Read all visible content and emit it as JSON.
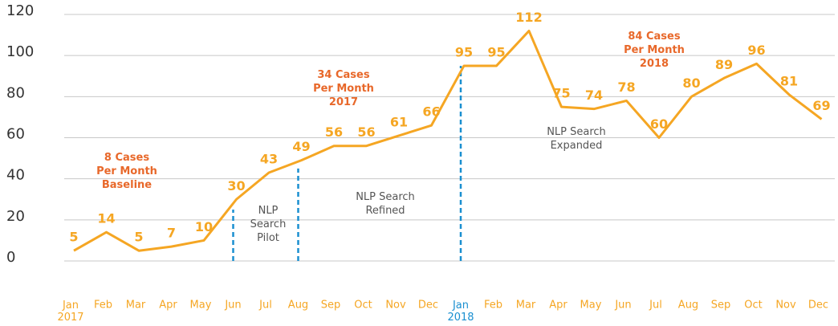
{
  "chart_data": {
    "type": "line",
    "categories": [
      "Jan\n2017",
      "Feb",
      "Mar",
      "Apr",
      "May",
      "Jun",
      "Jul",
      "Aug",
      "Sep",
      "Oct",
      "Nov",
      "Dec",
      "Jan\n2018",
      "Feb",
      "Mar",
      "Apr",
      "May",
      "Jun",
      "Jul",
      "Aug",
      "Sep",
      "Oct",
      "Nov",
      "Dec"
    ],
    "category_colors": [
      "#f5a623",
      "#f5a623",
      "#f5a623",
      "#f5a623",
      "#f5a623",
      "#f5a623",
      "#f5a623",
      "#f5a623",
      "#f5a623",
      "#f5a623",
      "#f5a623",
      "#f5a623",
      "#1a8fd0",
      "#f5a623",
      "#f5a623",
      "#f5a623",
      "#f5a623",
      "#f5a623",
      "#f5a623",
      "#f5a623",
      "#f5a623",
      "#f5a623",
      "#f5a623",
      "#f5a623"
    ],
    "values": [
      5,
      14,
      5,
      7,
      10,
      30,
      43,
      49,
      56,
      56,
      61,
      66,
      95,
      95,
      112,
      75,
      74,
      78,
      60,
      80,
      89,
      96,
      81,
      69
    ],
    "color": "#f5a623",
    "ylim": [
      0,
      120
    ],
    "yticks": [
      0,
      20,
      40,
      60,
      80,
      100,
      120
    ],
    "grid": true,
    "annotations": [
      "8 Cases\nPer Month\nBaseline",
      "34 Cases\nPer Month\n2017",
      "84 Cases\nPer Month\n2018"
    ],
    "phases": [
      "NLP\nSearch\nPilot",
      "NLP Search\nRefined",
      "NLP Search\nExpanded"
    ]
  }
}
